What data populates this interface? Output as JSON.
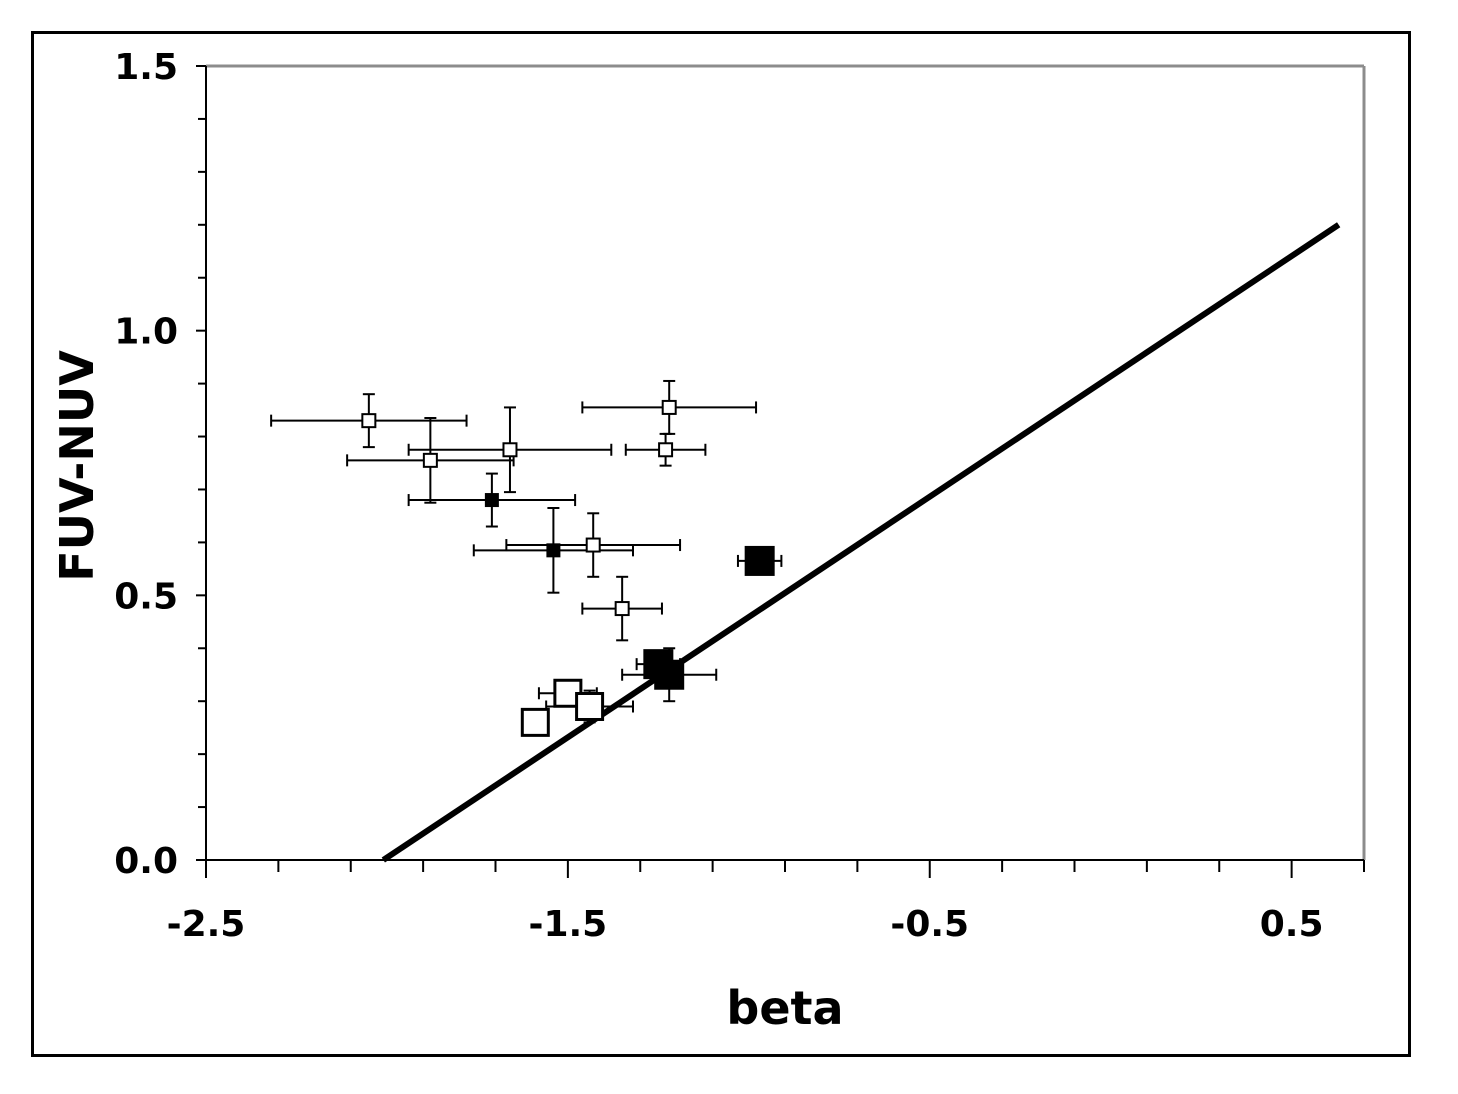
{
  "chart_data": {
    "type": "scatter",
    "title": "",
    "xlabel": "beta",
    "ylabel": "FUV-NUV",
    "xlim": [
      -2.5,
      0.7
    ],
    "ylim": [
      0.0,
      1.5
    ],
    "x_ticks": [
      {
        "value": -2.5,
        "label": "-2.5"
      },
      {
        "value": -1.5,
        "label": "-1.5"
      },
      {
        "value": -0.5,
        "label": "-0.5"
      },
      {
        "value": 0.5,
        "label": "0.5"
      }
    ],
    "x_minor_step": 0.2,
    "y_ticks": [
      {
        "value": 0.0,
        "label": "0.0"
      },
      {
        "value": 0.5,
        "label": "0.5"
      },
      {
        "value": 1.0,
        "label": "1.0"
      },
      {
        "value": 1.5,
        "label": "1.5"
      }
    ],
    "y_minor_step": 0.1,
    "grid": false,
    "line": {
      "name": "",
      "x": [
        -2.01,
        0.63
      ],
      "y": [
        0.0,
        1.2
      ],
      "color": "#000000"
    },
    "series": [
      {
        "name": "",
        "marker": "open-square-small",
        "color": "#000000",
        "points": [
          {
            "x": -2.05,
            "y": 0.83,
            "x_err_minus": 0.27,
            "x_err_plus": 0.27,
            "y_err_minus": 0.05,
            "y_err_plus": 0.05
          },
          {
            "x": -1.88,
            "y": 0.755,
            "x_err_minus": 0.23,
            "x_err_plus": 0.23,
            "y_err_minus": 0.08,
            "y_err_plus": 0.08
          },
          {
            "x": -1.66,
            "y": 0.775,
            "x_err_minus": 0.28,
            "x_err_plus": 0.28,
            "y_err_minus": 0.08,
            "y_err_plus": 0.08
          },
          {
            "x": -1.22,
            "y": 0.855,
            "x_err_minus": 0.24,
            "x_err_plus": 0.24,
            "y_err_minus": 0.05,
            "y_err_plus": 0.05
          },
          {
            "x": -1.23,
            "y": 0.775,
            "x_err_minus": 0.11,
            "x_err_plus": 0.11,
            "y_err_minus": 0.03,
            "y_err_plus": 0.03
          },
          {
            "x": -1.43,
            "y": 0.595,
            "x_err_minus": 0.24,
            "x_err_plus": 0.24,
            "y_err_minus": 0.06,
            "y_err_plus": 0.06
          },
          {
            "x": -1.35,
            "y": 0.475,
            "x_err_minus": 0.11,
            "x_err_plus": 0.11,
            "y_err_minus": 0.06,
            "y_err_plus": 0.06
          }
        ]
      },
      {
        "name": "",
        "marker": "filled-square-small",
        "color": "#000000",
        "points": [
          {
            "x": -1.71,
            "y": 0.68,
            "x_err_minus": 0.23,
            "x_err_plus": 0.23,
            "y_err_minus": 0.05,
            "y_err_plus": 0.05
          },
          {
            "x": -1.54,
            "y": 0.585,
            "x_err_minus": 0.22,
            "x_err_plus": 0.22,
            "y_err_minus": 0.08,
            "y_err_plus": 0.08
          }
        ]
      },
      {
        "name": "",
        "marker": "open-square-large",
        "color": "#000000",
        "points": [
          {
            "x": -1.59,
            "y": 0.26,
            "x_err_minus": 0.02,
            "x_err_plus": 0.02,
            "y_err_minus": 0.02,
            "y_err_plus": 0.02
          },
          {
            "x": -1.5,
            "y": 0.315,
            "x_err_minus": 0.08,
            "x_err_plus": 0.08,
            "y_err_minus": 0.02,
            "y_err_plus": 0.02
          },
          {
            "x": -1.44,
            "y": 0.29,
            "x_err_minus": 0.12,
            "x_err_plus": 0.12,
            "y_err_minus": 0.03,
            "y_err_plus": 0.03
          }
        ]
      },
      {
        "name": "",
        "marker": "filled-square-large",
        "color": "#000000",
        "points": [
          {
            "x": -0.97,
            "y": 0.565,
            "x_err_minus": 0.06,
            "x_err_plus": 0.06,
            "y_err_minus": 0.01,
            "y_err_plus": 0.01
          },
          {
            "x": -1.25,
            "y": 0.37,
            "x_err_minus": 0.06,
            "x_err_plus": 0.06,
            "y_err_minus": 0.02,
            "y_err_plus": 0.02
          },
          {
            "x": -1.22,
            "y": 0.35,
            "x_err_minus": 0.13,
            "x_err_plus": 0.13,
            "y_err_minus": 0.05,
            "y_err_plus": 0.05
          }
        ]
      }
    ]
  }
}
